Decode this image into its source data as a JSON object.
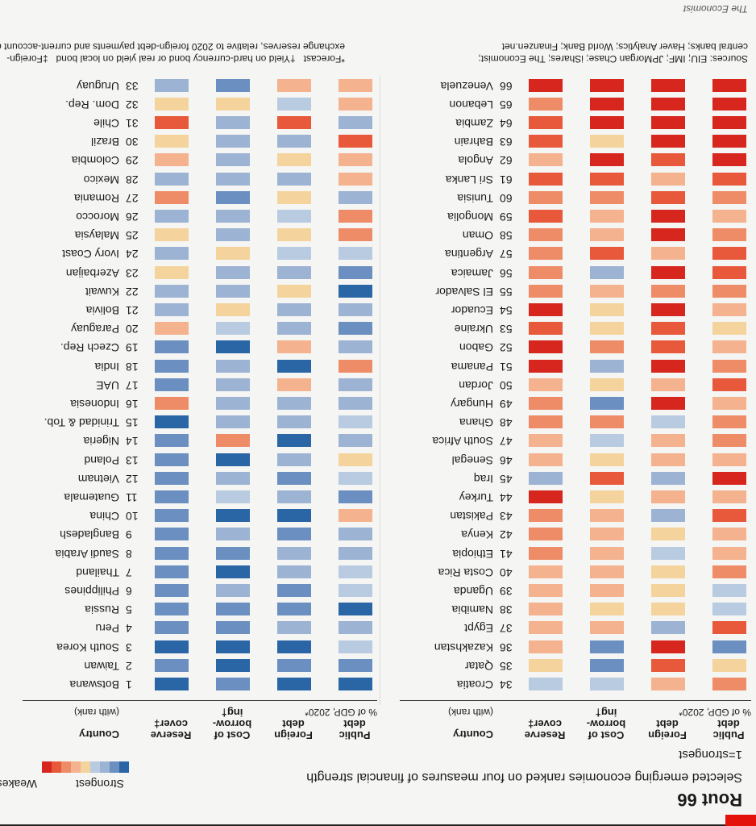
{
  "header": {
    "title": "Rout 66",
    "subtitle": "Selected emerging economies ranked on four measures of financial strength",
    "rank_note": "1=strongest",
    "legend_strong": "Strongest",
    "legend_weak": "Weakest"
  },
  "columns": {
    "country": "Country",
    "country_sub": "(with rank)",
    "public_debt": "Public\ndebt",
    "foreign_debt": "Foreign\ndebt",
    "debt_sub": "% of GDP, 2020*",
    "cost_of_borrowing": "Cost of\nborrow-\ning†",
    "reserve_cover": "Reserve\ncover‡"
  },
  "palette": {
    "1": "#2a65a6",
    "2": "#6a8fc0",
    "3": "#9db3d4",
    "4": "#b8cbe0",
    "5": "#f4d49c",
    "6": "#f5b28e",
    "7": "#ef8c68",
    "8": "#e8593b",
    "9": "#d7261e"
  },
  "footer": {
    "sources": "Sources: EIU; IMF; JPMorgan Chase; iShares; The Economist;\ncentral banks; Haver Analytics; World Bank; Finanzen.net",
    "footnotes": "*Forecast   †Yield on hard-currency bond or real yield on local bond   ‡Foreign-\nexchange reserves, relative to 2020 foreign-debt payments and current-account deficit",
    "publisher": "The Economist"
  },
  "chart_data": {
    "type": "table",
    "title": "Rout 66",
    "subtitle": "Selected emerging economies ranked on four measures of financial strength",
    "measures": [
      "Public debt",
      "Foreign debt",
      "Cost of borrowing",
      "Reserve cover"
    ],
    "scale": "1 = strongest (dark blue) to 9 = weakest (dark red)",
    "rows": [
      {
        "rank": "1",
        "country": "Botswana",
        "ratings": [
          1,
          1,
          2,
          1
        ]
      },
      {
        "rank": "2",
        "country": "Taiwan",
        "ratings": [
          2,
          2,
          1,
          2
        ]
      },
      {
        "rank": "3",
        "country": "South Korea",
        "ratings": [
          4,
          1,
          1,
          1
        ]
      },
      {
        "rank": "4",
        "country": "Peru",
        "ratings": [
          3,
          3,
          2,
          2
        ]
      },
      {
        "rank": "5",
        "country": "Russia",
        "ratings": [
          1,
          2,
          2,
          2
        ]
      },
      {
        "rank": "6",
        "country": "Philippines",
        "ratings": [
          4,
          2,
          3,
          2
        ]
      },
      {
        "rank": "7",
        "country": "Thailand",
        "ratings": [
          4,
          3,
          1,
          2
        ]
      },
      {
        "rank": "8",
        "country": "Saudi Arabia",
        "ratings": [
          3,
          3,
          2,
          2
        ]
      },
      {
        "rank": "9",
        "country": "Bangladesh",
        "ratings": [
          3,
          2,
          3,
          2
        ]
      },
      {
        "rank": "10",
        "country": "China",
        "ratings": [
          6,
          1,
          1,
          2
        ]
      },
      {
        "rank": "11",
        "country": "Guatemala",
        "ratings": [
          2,
          3,
          4,
          2
        ]
      },
      {
        "rank": "12",
        "country": "Vietnam",
        "ratings": [
          4,
          2,
          3,
          2
        ]
      },
      {
        "rank": "13",
        "country": "Poland",
        "ratings": [
          5,
          3,
          1,
          2
        ]
      },
      {
        "rank": "14",
        "country": "Nigeria",
        "ratings": [
          3,
          1,
          7,
          2
        ]
      },
      {
        "rank": "15",
        "country": "Trinidad & Tob.",
        "ratings": [
          4,
          3,
          3,
          1
        ]
      },
      {
        "rank": "16",
        "country": "Indonesia",
        "ratings": [
          3,
          3,
          3,
          7
        ]
      },
      {
        "rank": "17",
        "country": "UAE",
        "ratings": [
          3,
          6,
          3,
          2
        ]
      },
      {
        "rank": "18",
        "country": "India",
        "ratings": [
          7,
          1,
          3,
          2
        ]
      },
      {
        "rank": "19",
        "country": "Czech Rep.",
        "ratings": [
          3,
          6,
          1,
          2
        ]
      },
      {
        "rank": "20",
        "country": "Paraguay",
        "ratings": [
          2,
          3,
          4,
          6
        ]
      },
      {
        "rank": "21",
        "country": "Bolivia",
        "ratings": [
          3,
          3,
          5,
          3
        ]
      },
      {
        "rank": "22",
        "country": "Kuwait",
        "ratings": [
          1,
          5,
          3,
          3
        ]
      },
      {
        "rank": "23",
        "country": "Azerbaijan",
        "ratings": [
          2,
          3,
          3,
          5
        ]
      },
      {
        "rank": "24",
        "country": "Ivory Coast",
        "ratings": [
          4,
          4,
          5,
          3
        ]
      },
      {
        "rank": "25",
        "country": "Malaysia",
        "ratings": [
          7,
          5,
          3,
          5
        ]
      },
      {
        "rank": "26",
        "country": "Morocco",
        "ratings": [
          7,
          4,
          3,
          3
        ]
      },
      {
        "rank": "27",
        "country": "Romania",
        "ratings": [
          3,
          5,
          2,
          7
        ]
      },
      {
        "rank": "28",
        "country": "Mexico",
        "ratings": [
          6,
          3,
          3,
          3
        ]
      },
      {
        "rank": "29",
        "country": "Colombia",
        "ratings": [
          6,
          5,
          3,
          6
        ]
      },
      {
        "rank": "30",
        "country": "Brazil",
        "ratings": [
          8,
          3,
          3,
          5
        ]
      },
      {
        "rank": "31",
        "country": "Chile",
        "ratings": [
          3,
          8,
          3,
          8
        ]
      },
      {
        "rank": "32",
        "country": "Dom. Rep.",
        "ratings": [
          6,
          4,
          5,
          5
        ]
      },
      {
        "rank": "33",
        "country": "Uruguay",
        "ratings": [
          6,
          6,
          2,
          3
        ]
      },
      {
        "rank": "34",
        "country": "Croatia",
        "ratings": [
          7,
          6,
          4,
          4
        ]
      },
      {
        "rank": "35",
        "country": "Qatar",
        "ratings": [
          5,
          8,
          2,
          5
        ]
      },
      {
        "rank": "36",
        "country": "Kazakhstan",
        "ratings": [
          2,
          9,
          2,
          6
        ]
      },
      {
        "rank": "37",
        "country": "Egypt",
        "ratings": [
          8,
          3,
          6,
          6
        ]
      },
      {
        "rank": "38",
        "country": "Namibia",
        "ratings": [
          4,
          5,
          5,
          6
        ]
      },
      {
        "rank": "39",
        "country": "Uganda",
        "ratings": [
          4,
          5,
          6,
          6
        ]
      },
      {
        "rank": "40",
        "country": "Costa Rica",
        "ratings": [
          7,
          5,
          6,
          6
        ]
      },
      {
        "rank": "41",
        "country": "Ethiopia",
        "ratings": [
          6,
          4,
          6,
          7
        ]
      },
      {
        "rank": "42",
        "country": "Kenya",
        "ratings": [
          6,
          5,
          6,
          7
        ]
      },
      {
        "rank": "43",
        "country": "Pakistan",
        "ratings": [
          8,
          3,
          6,
          7
        ]
      },
      {
        "rank": "44",
        "country": "Turkey",
        "ratings": [
          6,
          6,
          5,
          9
        ]
      },
      {
        "rank": "45",
        "country": "Iraq",
        "ratings": [
          9,
          3,
          8,
          3
        ]
      },
      {
        "rank": "46",
        "country": "Senegal",
        "ratings": [
          6,
          6,
          5,
          6
        ]
      },
      {
        "rank": "47",
        "country": "South Africa",
        "ratings": [
          7,
          6,
          4,
          6
        ]
      },
      {
        "rank": "48",
        "country": "Ghana",
        "ratings": [
          7,
          4,
          7,
          7
        ]
      },
      {
        "rank": "49",
        "country": "Hungary",
        "ratings": [
          6,
          9,
          2,
          7
        ]
      },
      {
        "rank": "50",
        "country": "Jordan",
        "ratings": [
          8,
          6,
          5,
          6
        ]
      },
      {
        "rank": "51",
        "country": "Panama",
        "ratings": [
          7,
          9,
          3,
          9
        ]
      },
      {
        "rank": "52",
        "country": "Gabon",
        "ratings": [
          6,
          8,
          7,
          9
        ]
      },
      {
        "rank": "53",
        "country": "Ukraine",
        "ratings": [
          5,
          8,
          5,
          8
        ]
      },
      {
        "rank": "54",
        "country": "Ecuador",
        "ratings": [
          6,
          9,
          5,
          9
        ]
      },
      {
        "rank": "55",
        "country": "El Salvador",
        "ratings": [
          7,
          7,
          6,
          7
        ]
      },
      {
        "rank": "56",
        "country": "Jamaica",
        "ratings": [
          8,
          9,
          3,
          7
        ]
      },
      {
        "rank": "57",
        "country": "Argentina",
        "ratings": [
          8,
          6,
          8,
          7
        ]
      },
      {
        "rank": "58",
        "country": "Oman",
        "ratings": [
          7,
          9,
          6,
          7
        ]
      },
      {
        "rank": "59",
        "country": "Mongolia",
        "ratings": [
          6,
          9,
          6,
          8
        ]
      },
      {
        "rank": "60",
        "country": "Tunisia",
        "ratings": [
          7,
          8,
          7,
          7
        ]
      },
      {
        "rank": "61",
        "country": "Sri Lanka",
        "ratings": [
          8,
          6,
          8,
          8
        ]
      },
      {
        "rank": "62",
        "country": "Angola",
        "ratings": [
          9,
          8,
          9,
          6
        ]
      },
      {
        "rank": "63",
        "country": "Bahrain",
        "ratings": [
          9,
          9,
          5,
          8
        ]
      },
      {
        "rank": "64",
        "country": "Zambia",
        "ratings": [
          9,
          9,
          9,
          8
        ]
      },
      {
        "rank": "65",
        "country": "Lebanon",
        "ratings": [
          9,
          9,
          9,
          7
        ]
      },
      {
        "rank": "66",
        "country": "Venezuela",
        "ratings": [
          9,
          9,
          9,
          9
        ]
      }
    ]
  }
}
